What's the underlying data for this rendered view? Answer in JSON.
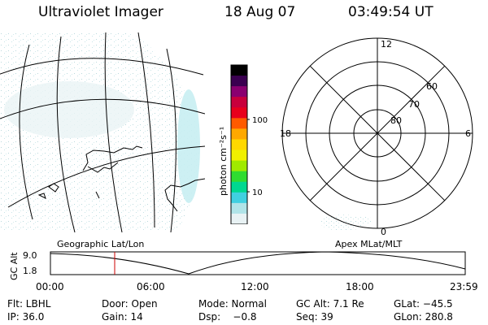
{
  "header": {
    "instrument": "Ultraviolet Imager",
    "date": "18 Aug 07",
    "time": "03:49:54 UT"
  },
  "colorbar": {
    "label": "photon cm⁻²s⁻¹",
    "ticks": [
      {
        "label": "100",
        "value": 100
      },
      {
        "label": "10",
        "value": 10
      }
    ],
    "colors": [
      "#000000",
      "#3a0050",
      "#8a0070",
      "#c8003c",
      "#e8001c",
      "#ff5a00",
      "#ffa800",
      "#ffd800",
      "#f0f000",
      "#a0ea00",
      "#30dc30",
      "#00d890",
      "#40d0e0",
      "#b0e4e8",
      "#e8f2f4"
    ]
  },
  "polar_plot": {
    "mlt_labels": {
      "top": "12",
      "left": "18",
      "right": "6",
      "bottom": "0"
    },
    "mlat_rings": [
      {
        "label": "80",
        "value": 80
      },
      {
        "label": "70",
        "value": 70
      },
      {
        "label": "60",
        "value": 60
      }
    ]
  },
  "timeline": {
    "left_label": "Geographic Lat/Lon",
    "right_label": "Apex MLat/MLT",
    "y_title": "GC Alt",
    "y_ticks": [
      "9.0",
      "1.8"
    ],
    "x_ticks": [
      "00:00",
      "06:00",
      "12:00",
      "18:00",
      "23:59"
    ],
    "marker_time": "03:49:54",
    "colors": {
      "curve": "#000000",
      "marker": "#cc0000"
    }
  },
  "status": {
    "filter": "Flt: LBHL",
    "door": "Door: Open",
    "mode": "Mode: Normal",
    "gc_alt": "GC Alt: 7.1 Re",
    "glat": "GLat: −45.5",
    "ip": "IP: 36.0",
    "gain": "Gain: 14",
    "dsp": "Dsp:    −0.8",
    "seq": "Seq: 39",
    "glon": "GLon: 280.8"
  }
}
